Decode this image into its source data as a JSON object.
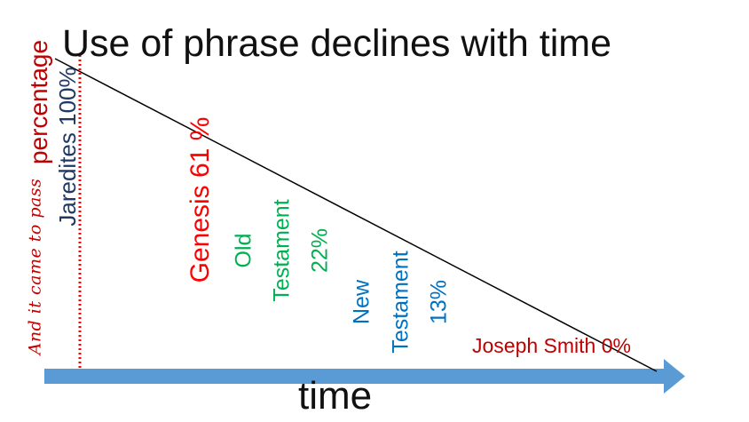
{
  "title": "Use of phrase declines with time",
  "x_axis_label": "time",
  "y_axis_label_script": "And it came to pass",
  "y_axis_label_word": "percentage",
  "data_labels": {
    "jaredites": "Jaredites 100%",
    "genesis": "Genesis 61 %",
    "old_testament": {
      "line1": "Old",
      "line2": "Testament",
      "line3": "22%"
    },
    "new_testament": {
      "line1": "New",
      "line2": "Testament",
      "line3": "13%"
    },
    "joseph_smith": "Joseph Smith 0%"
  },
  "colors": {
    "axis_arrow": "#5b9bd5",
    "y_axis_dotted": "#ff0000",
    "trend_line": "#000000",
    "jaredites": "#1f3864",
    "genesis": "#ff0000",
    "old_testament": "#00b050",
    "new_testament": "#0070c0",
    "joseph_smith": "#c00000"
  }
}
